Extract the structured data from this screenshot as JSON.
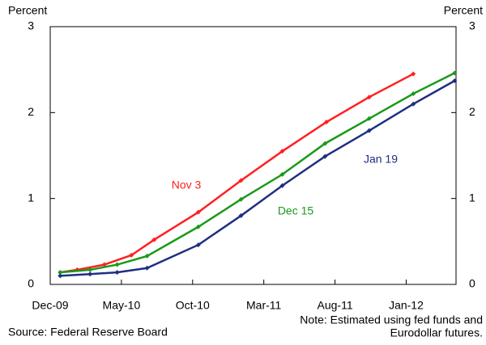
{
  "chart_data": {
    "type": "line",
    "y_label": "Percent",
    "y2_label": "Percent",
    "source": "Source: Federal Reserve Board",
    "note": [
      "Note: Estimated using fed funds and",
      "Eurodollar futures."
    ],
    "xlim": [
      0,
      28.5
    ],
    "xticks": [
      {
        "value": 0,
        "label": "Dec-09"
      },
      {
        "value": 5,
        "label": "May-10"
      },
      {
        "value": 10,
        "label": "Oct-10"
      },
      {
        "value": 15,
        "label": "Mar-11"
      },
      {
        "value": 20,
        "label": "Aug-11"
      },
      {
        "value": 25,
        "label": "Jan-12"
      }
    ],
    "ylim": [
      0,
      3
    ],
    "yticks": [
      0,
      1,
      2,
      3
    ],
    "y2lim": [
      0,
      3
    ],
    "y2ticks": [
      0,
      1,
      2,
      3
    ],
    "series": [
      {
        "name": "Nov 3",
        "color": "#ff2020",
        "x": [
          0.7,
          1.9,
          3.8,
          5.7,
          7.3,
          10.4,
          13.4,
          16.3,
          19.4,
          22.4,
          25.5
        ],
        "values": [
          0.14,
          0.17,
          0.23,
          0.34,
          0.52,
          0.84,
          1.21,
          1.55,
          1.89,
          2.18,
          2.45
        ]
      },
      {
        "name": "Dec 15",
        "color": "#1a9a1a",
        "x": [
          0.7,
          2.8,
          4.7,
          6.8,
          10.4,
          13.4,
          16.3,
          19.3,
          22.4,
          25.5,
          28.4
        ],
        "values": [
          0.14,
          0.17,
          0.23,
          0.33,
          0.67,
          0.99,
          1.28,
          1.64,
          1.93,
          2.22,
          2.46
        ]
      },
      {
        "name": "Jan 19",
        "color": "#1f2f80",
        "x": [
          0.7,
          2.8,
          4.7,
          6.8,
          10.4,
          13.4,
          16.3,
          19.3,
          22.4,
          25.5,
          28.4
        ],
        "values": [
          0.1,
          0.12,
          0.14,
          0.19,
          0.46,
          0.8,
          1.15,
          1.49,
          1.79,
          2.1,
          2.37
        ]
      }
    ]
  }
}
